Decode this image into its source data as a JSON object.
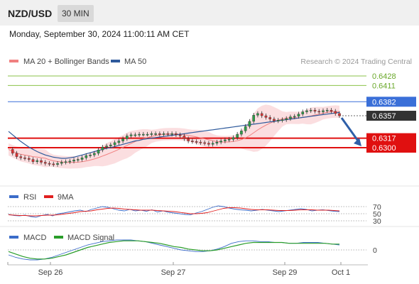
{
  "header": {
    "symbol": "NZD/USD",
    "interval": "30 MIN",
    "datetime": "Monday, September 30, 2024 11:00:11 AM CET"
  },
  "legend": {
    "main": [
      {
        "label": "MA 20 + Bollinger Bands",
        "color": "#f08080"
      },
      {
        "label": "MA 50",
        "color": "#2e5a9c"
      }
    ],
    "watermark": "Research © 2024 Trading Central",
    "rsi": [
      {
        "label": "RSI",
        "color": "#3b6cc9"
      },
      {
        "label": "9MA",
        "color": "#e02020"
      }
    ],
    "macd": [
      {
        "label": "MACD",
        "color": "#3b6cc9"
      },
      {
        "label": "MACD Signal",
        "color": "#2a9d2a"
      }
    ]
  },
  "chart_data": {
    "type": "candlestick",
    "x_labels": [
      "Sep 26",
      "Sep 27",
      "Sep 29",
      "Oct 1"
    ],
    "y_range": [
      0.6245,
      0.6445
    ],
    "levels": [
      {
        "label": "0.6428",
        "value": 0.6428,
        "kind": "green-line",
        "color": "#8bc34a"
      },
      {
        "label": "0.6411",
        "value": 0.6411,
        "kind": "green-line",
        "color": "#8bc34a"
      },
      {
        "label": "0.6382",
        "value": 0.6382,
        "kind": "blue-line",
        "color": "#3a6fd8"
      },
      {
        "label": "0.6357",
        "value": 0.6357,
        "kind": "current-price",
        "color": "#333333"
      },
      {
        "label": "0.6317",
        "value": 0.6317,
        "kind": "red-line",
        "color": "#e01010"
      },
      {
        "label": "0.6300",
        "value": 0.63,
        "kind": "red-line",
        "color": "#e01010"
      }
    ],
    "close_series": [
      0.6297,
      0.629,
      0.6284,
      0.6282,
      0.6281,
      0.6279,
      0.6275,
      0.6277,
      0.6274,
      0.6272,
      0.6271,
      0.627,
      0.6272,
      0.6274,
      0.6275,
      0.6276,
      0.6278,
      0.6279,
      0.6282,
      0.6286,
      0.6287,
      0.629,
      0.6296,
      0.6301,
      0.6303,
      0.6305,
      0.6309,
      0.6312,
      0.6316,
      0.6321,
      0.6323,
      0.6323,
      0.6324,
      0.6324,
      0.6324,
      0.6325,
      0.6325,
      0.6324,
      0.6325,
      0.6324,
      0.6325,
      0.6323,
      0.6321,
      0.6316,
      0.6312,
      0.6311,
      0.631,
      0.6309,
      0.6308,
      0.6306,
      0.6308,
      0.631,
      0.6312,
      0.6314,
      0.6315,
      0.6318,
      0.6324,
      0.633,
      0.6338,
      0.6347,
      0.6358,
      0.6361,
      0.6357,
      0.6354,
      0.6351,
      0.6348,
      0.6349,
      0.635,
      0.6352,
      0.6355,
      0.6356,
      0.636,
      0.6364,
      0.6366,
      0.6367,
      0.6365,
      0.6364,
      0.6366,
      0.6367,
      0.6365,
      0.6361,
      0.6357
    ],
    "ma50_series": [
      0.6329,
      0.6323,
      0.6317,
      0.6311,
      0.6306,
      0.6301,
      0.6297,
      0.6293,
      0.629,
      0.6287,
      0.6285,
      0.6283,
      0.6282,
      0.6281,
      0.6281,
      0.6282,
      0.6283,
      0.6285,
      0.6287,
      0.6289,
      0.6291,
      0.6293,
      0.6295,
      0.6297,
      0.6299,
      0.63,
      0.6302,
      0.6304,
      0.6306,
      0.6308,
      0.631,
      0.6312,
      0.6313,
      0.6315,
      0.6316,
      0.6317,
      0.6318,
      0.6319,
      0.632,
      0.6321,
      0.6322,
      0.6323,
      0.6324,
      0.6325,
      0.6326,
      0.6327,
      0.6328,
      0.6329,
      0.633,
      0.6331,
      0.6332,
      0.6333,
      0.6334,
      0.6335,
      0.6336,
      0.6337,
      0.6338,
      0.6339,
      0.634,
      0.6341,
      0.6342,
      0.6343,
      0.6344,
      0.6345,
      0.6346,
      0.6347,
      0.6348,
      0.6349,
      0.635,
      0.6351,
      0.6352,
      0.6353,
      0.6354,
      0.6355,
      0.6356,
      0.6357,
      0.6358,
      0.6359,
      0.636,
      0.6361,
      0.6362,
      0.6363
    ],
    "forecast_arrow": {
      "from": 0.6357,
      "to": 0.63
    },
    "rsi": {
      "levels": [
        "70",
        "50",
        "30"
      ],
      "rsi_series": [
        48,
        45,
        44,
        46,
        42,
        40,
        45,
        48,
        44,
        50,
        52,
        55,
        58,
        60,
        56,
        62,
        66,
        70,
        68,
        64,
        60,
        58,
        62,
        58,
        60,
        57,
        61,
        55,
        58,
        54,
        52,
        50,
        48,
        47,
        52,
        56,
        62,
        68,
        72,
        70,
        66,
        63,
        61,
        60,
        58,
        60,
        62,
        60,
        58,
        56,
        58,
        60,
        62,
        64,
        62,
        58,
        60,
        61,
        59,
        57,
        56
      ],
      "ma_series": [
        47,
        46,
        45,
        45,
        44,
        44,
        45,
        46,
        46,
        47,
        49,
        51,
        53,
        56,
        57,
        58,
        61,
        63,
        65,
        66,
        65,
        63,
        62,
        61,
        60,
        60,
        60,
        59,
        58,
        57,
        56,
        54,
        52,
        50,
        50,
        51,
        53,
        57,
        61,
        65,
        67,
        67,
        66,
        64,
        62,
        61,
        61,
        61,
        60,
        59,
        59,
        59,
        60,
        61,
        61,
        61,
        60,
        60,
        60,
        59,
        58
      ]
    },
    "macd": {
      "zero_label": "0",
      "macd_series": [
        -0.0006,
        -0.0009,
        -0.0011,
        -0.0012,
        -0.0012,
        -0.0011,
        -0.0009,
        -0.0006,
        -0.0003,
        0.0,
        0.0003,
        0.0006,
        0.0008,
        0.001,
        0.0011,
        0.0012,
        0.0012,
        0.0012,
        0.0011,
        0.001,
        0.0008,
        0.0006,
        0.0004,
        0.0002,
        0.0,
        -0.0001,
        -0.0002,
        -0.0002,
        -0.0001,
        0.0001,
        0.0004,
        0.0008,
        0.001,
        0.0011,
        0.0011,
        0.001,
        0.001,
        0.0009,
        0.0009,
        0.0008,
        0.0008,
        0.0009,
        0.0009,
        0.0009,
        0.0008,
        0.0007,
        0.0006
      ],
      "signal_series": [
        -0.0002,
        -0.0005,
        -0.0008,
        -0.001,
        -0.0011,
        -0.0011,
        -0.001,
        -0.0008,
        -0.0006,
        -0.0003,
        0.0,
        0.0003,
        0.0005,
        0.0007,
        0.0009,
        0.001,
        0.0011,
        0.0011,
        0.0011,
        0.001,
        0.0009,
        0.0008,
        0.0006,
        0.0004,
        0.0003,
        0.0001,
        0.0,
        -0.0001,
        -0.0001,
        0.0,
        0.0002,
        0.0004,
        0.0006,
        0.0008,
        0.0009,
        0.0009,
        0.0009,
        0.0009,
        0.0009,
        0.0008,
        0.0008,
        0.0008,
        0.0008,
        0.0008,
        0.0008,
        0.0007,
        0.0007
      ]
    }
  }
}
